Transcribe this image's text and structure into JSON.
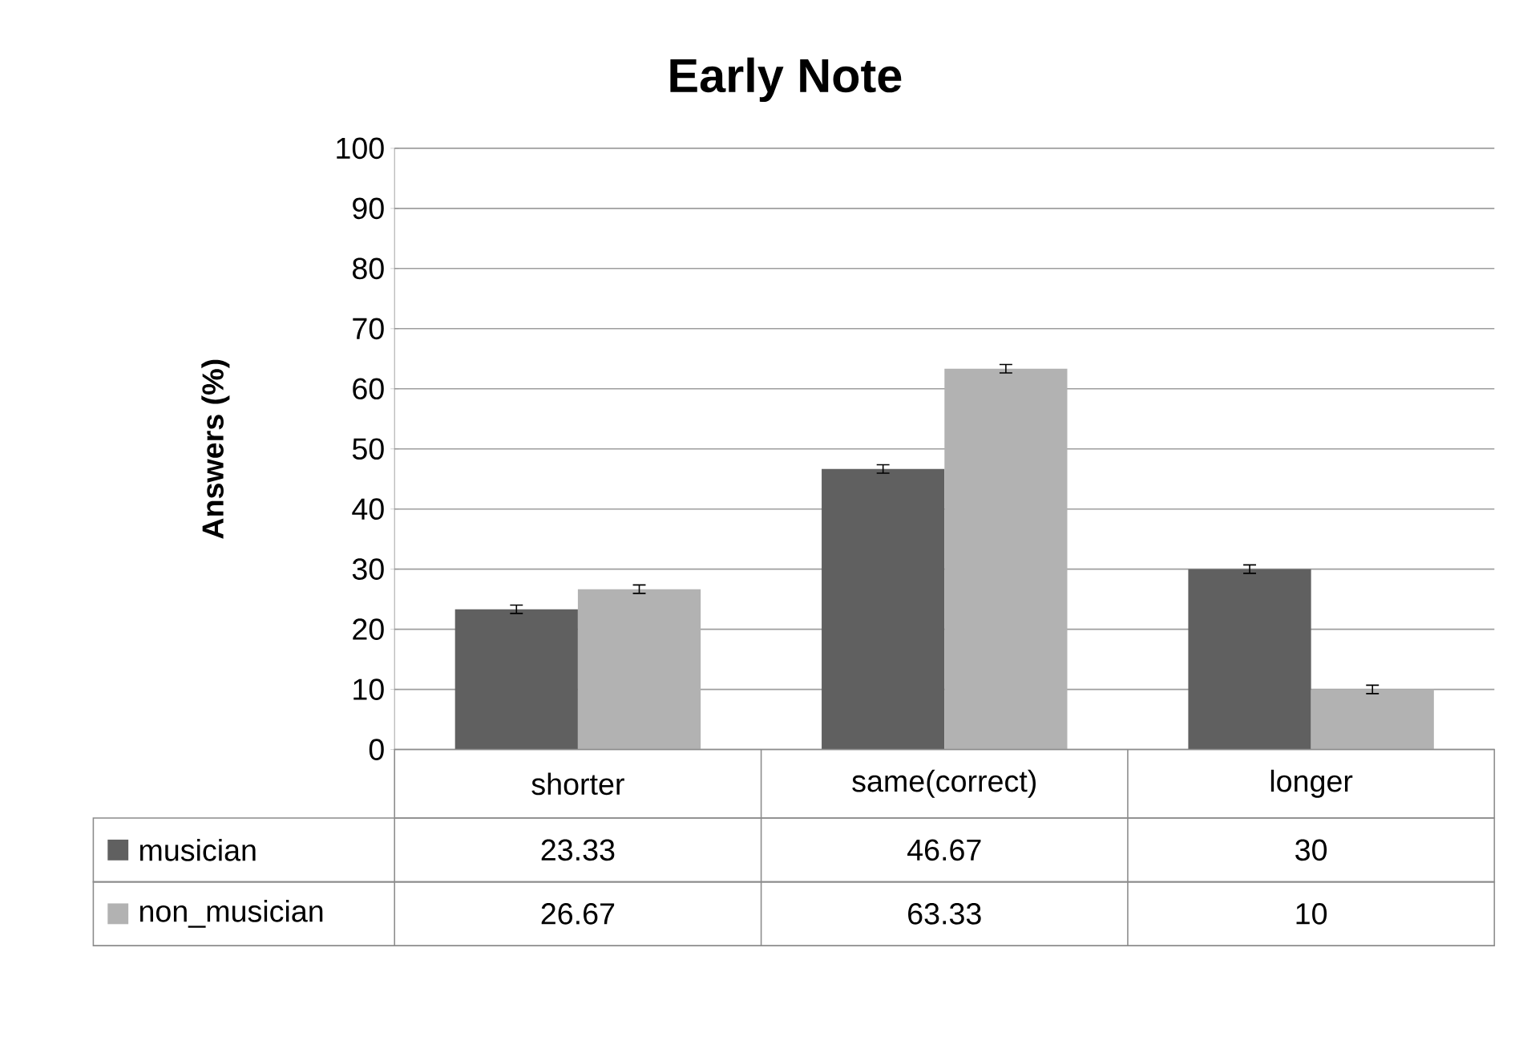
{
  "chart_data": {
    "type": "bar",
    "title": "Early Note",
    "ylabel": "Answers (%)",
    "categories": [
      "shorter",
      "same(correct)",
      "longer"
    ],
    "series": [
      {
        "name": "musician",
        "color": "#606060",
        "values": [
          23.33,
          46.67,
          30
        ],
        "errors": [
          0.7,
          0.7,
          0.7
        ]
      },
      {
        "name": "non_musician",
        "color": "#b2b2b2",
        "values": [
          26.67,
          63.33,
          10
        ],
        "errors": [
          0.7,
          0.7,
          0.7
        ]
      }
    ],
    "ylim": [
      0,
      100
    ],
    "yticks": [
      0,
      10,
      20,
      30,
      40,
      50,
      60,
      70,
      80,
      90,
      100
    ],
    "grid": "y",
    "legend": "bottom",
    "data_labels": true
  }
}
